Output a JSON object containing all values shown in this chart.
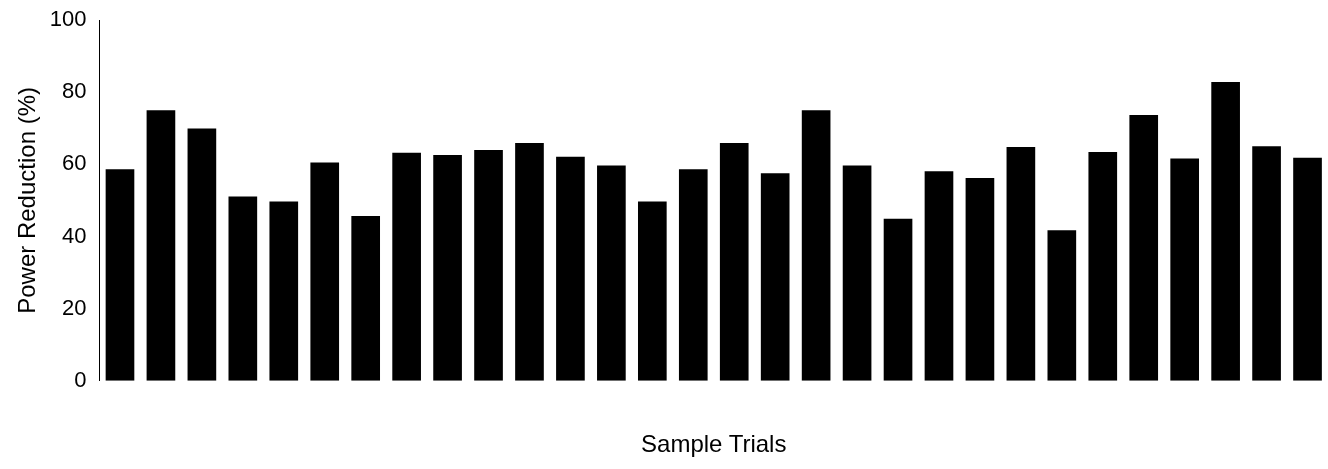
{
  "chart_data": {
    "type": "bar",
    "xlabel": "Sample Trials",
    "ylabel": "Power Reduction (%)",
    "categories": [
      null,
      null,
      null,
      null,
      null,
      null,
      null,
      null,
      null,
      null,
      null,
      null,
      null,
      null,
      null,
      null,
      null,
      null,
      null,
      null,
      null,
      null,
      null,
      null,
      null,
      null,
      null,
      null,
      null,
      null
    ],
    "values": [
      58.6,
      75,
      69.9,
      51.1,
      49.7,
      60.5,
      45.7,
      63.2,
      62.6,
      64,
      65.9,
      62.1,
      59.7,
      49.7,
      58.6,
      65.9,
      57.5,
      75,
      59.7,
      44.9,
      58.1,
      56.2,
      64.8,
      41.7,
      63.4,
      73.7,
      61.6,
      82.8,
      65,
      61.8
    ],
    "color": "#000000",
    "ylim": [
      0,
      100
    ],
    "yticks": [
      0,
      20,
      40,
      60,
      80,
      100
    ],
    "grid": false,
    "legend": false
  }
}
